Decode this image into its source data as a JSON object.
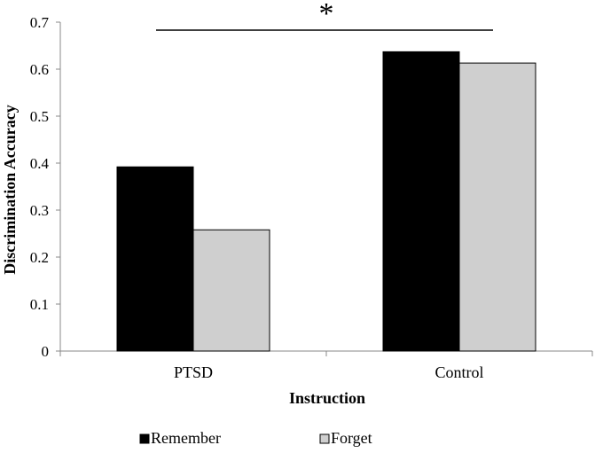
{
  "chart_data": {
    "type": "bar",
    "xlabel": "Instruction",
    "ylabel": "Discrimination Accuracy",
    "categories": [
      "PTSD",
      "Control"
    ],
    "series": [
      {
        "name": "Remember",
        "values": [
          0.392,
          0.637
        ],
        "color": "#000000"
      },
      {
        "name": "Forget",
        "values": [
          0.258,
          0.613
        ],
        "color": "#cfcfcf"
      }
    ],
    "ylim": [
      0,
      0.7
    ],
    "yticks": [
      "0",
      "0.1",
      "0.2",
      "0.3",
      "0.4",
      "0.5",
      "0.6",
      "0.7"
    ],
    "grid": false,
    "legend_position": "bottom",
    "annotation": {
      "text": "*",
      "description": "significance bracket spanning PTSD to Control"
    }
  }
}
